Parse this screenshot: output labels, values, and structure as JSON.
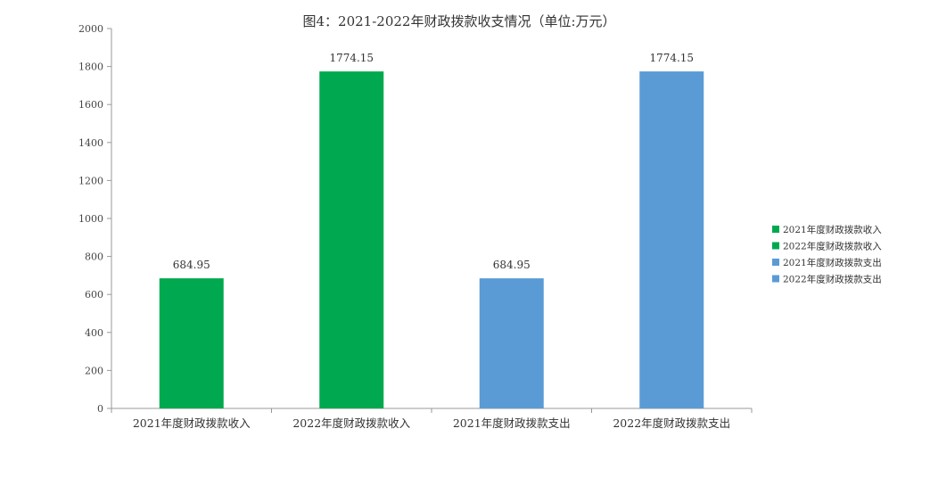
{
  "chart_data": {
    "type": "bar",
    "title": "图4：2021-2022年财政拨款收支情况（单位:万元）",
    "categories": [
      "2021年度财政拨款收入",
      "2022年度财政拨款收入",
      "2021年度财政拨款支出",
      "2022年度财政拨款支出"
    ],
    "values": [
      684.95,
      1774.15,
      684.95,
      1774.15
    ],
    "data_labels": [
      "684.95",
      "1774.15",
      "684.95",
      "1774.15"
    ],
    "bar_colors": [
      "#00a94f",
      "#00a94f",
      "#5b9bd5",
      "#5b9bd5"
    ],
    "ylim": [
      0,
      2000
    ],
    "yticks": [
      0,
      200,
      400,
      600,
      800,
      1000,
      1200,
      1400,
      1600,
      1800,
      2000
    ],
    "grid": false,
    "legend": {
      "position": "right",
      "entries": [
        {
          "label": "2021年度财政拨款收入",
          "color": "#00a94f"
        },
        {
          "label": "2022年度财政拨款收入",
          "color": "#00a94f"
        },
        {
          "label": "2021年度财政拨款支出",
          "color": "#5b9bd5"
        },
        {
          "label": "2022年度财政拨款支出",
          "color": "#5b9bd5"
        }
      ]
    },
    "xlabel": "",
    "ylabel": ""
  }
}
